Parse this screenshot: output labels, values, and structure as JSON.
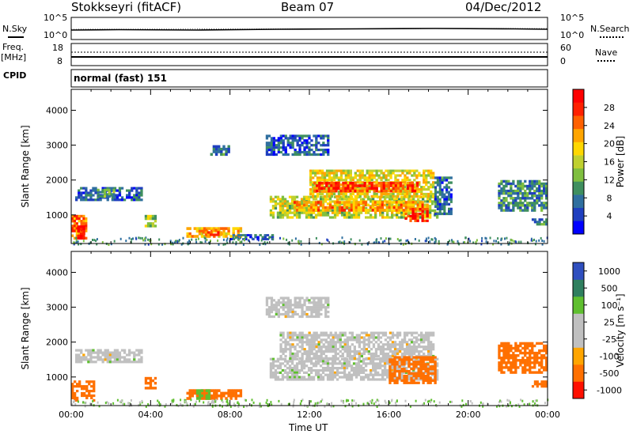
{
  "header": {
    "station": "Stokkseyri (fitACF)",
    "beam": "Beam 07",
    "date": "04/Dec/2012"
  },
  "noise_panel": {
    "left_label": "N.Sky",
    "right_label": "N.Search",
    "ticks_left": [
      "10^5",
      "10^0"
    ],
    "ticks_right": [
      "10^5",
      "10^0"
    ]
  },
  "freq_panel": {
    "left_label_1": "Freq.",
    "left_label_2": "[MHz]",
    "right_label": "Nave",
    "ticks_left": [
      "18",
      "8"
    ],
    "ticks_right": [
      "60",
      "0"
    ]
  },
  "cpid_panel": {
    "label": "CPID",
    "value": "normal (fast) 151"
  },
  "chart_data": [
    {
      "type": "heatmap",
      "variable": "power",
      "ylabel": "Slant Range [km]",
      "ylim": [
        180,
        4600
      ],
      "yticks": [
        "4000",
        "3000",
        "2000",
        "1000"
      ],
      "xlim": [
        0,
        24
      ],
      "colorbar": {
        "label": "Power [dB]",
        "ticks": [
          "28",
          "24",
          "20",
          "16",
          "12",
          "8",
          "4"
        ],
        "range": [
          0,
          32
        ]
      },
      "regions": [
        {
          "t0": 0.0,
          "t1": 0.8,
          "r0": 300,
          "r1": 1000,
          "v": 24
        },
        {
          "t0": 0.3,
          "t1": 0.7,
          "r0": 300,
          "r1": 700,
          "v": 30
        },
        {
          "t0": 0.2,
          "t1": 3.6,
          "r0": 1400,
          "r1": 1800,
          "v": 6
        },
        {
          "t0": 1.3,
          "t1": 2.2,
          "r0": 1500,
          "r1": 1750,
          "v": 12
        },
        {
          "t0": 3.7,
          "t1": 4.3,
          "r0": 650,
          "r1": 1000,
          "v": 14
        },
        {
          "t0": 5.8,
          "t1": 8.6,
          "r0": 350,
          "r1": 650,
          "v": 20
        },
        {
          "t0": 6.6,
          "t1": 7.6,
          "r0": 400,
          "r1": 600,
          "v": 26
        },
        {
          "t0": 8.0,
          "t1": 10.2,
          "r0": 280,
          "r1": 450,
          "v": 6
        },
        {
          "t0": 10.0,
          "t1": 18.5,
          "r0": 900,
          "r1": 1550,
          "v": 16
        },
        {
          "t0": 11.2,
          "t1": 18.0,
          "r0": 1100,
          "r1": 1400,
          "v": 22
        },
        {
          "t0": 12.0,
          "t1": 18.3,
          "r0": 1500,
          "r1": 2300,
          "v": 18
        },
        {
          "t0": 12.2,
          "t1": 17.5,
          "r0": 1650,
          "r1": 1950,
          "v": 27
        },
        {
          "t0": 16.8,
          "t1": 18.0,
          "r0": 800,
          "r1": 1200,
          "v": 28
        },
        {
          "t0": 9.8,
          "t1": 13.0,
          "r0": 2700,
          "r1": 3300,
          "v": 6
        },
        {
          "t0": 7.0,
          "t1": 8.0,
          "r0": 2700,
          "r1": 3000,
          "v": 8
        },
        {
          "t0": 18.3,
          "t1": 19.2,
          "r0": 1000,
          "r1": 2100,
          "v": 7
        },
        {
          "t0": 21.5,
          "t1": 24.0,
          "r0": 1100,
          "r1": 2000,
          "v": 9
        },
        {
          "t0": 23.2,
          "t1": 24.0,
          "r0": 700,
          "r1": 900,
          "v": 8
        }
      ]
    },
    {
      "type": "heatmap",
      "variable": "velocity",
      "ylabel": "Slant Range [km]",
      "ylim": [
        180,
        4600
      ],
      "yticks": [
        "4000",
        "3000",
        "2000",
        "1000"
      ],
      "xlim": [
        0,
        24
      ],
      "xlabel": "Time UT",
      "xticks": [
        "00:00",
        "04:00",
        "08:00",
        "12:00",
        "16:00",
        "20:00",
        "00:00"
      ],
      "colorbar": {
        "label": "Velocity [m s⁻¹]",
        "ticks": [
          "1000",
          "500",
          "100",
          "25",
          "-25",
          "-100",
          "-500",
          "-1000"
        ]
      },
      "regions": [
        {
          "t0": 0.0,
          "t1": 1.2,
          "r0": 300,
          "r1": 900,
          "v": -150
        },
        {
          "t0": 0.2,
          "t1": 3.6,
          "r0": 1400,
          "r1": 1800,
          "v": 0
        },
        {
          "t0": 3.7,
          "t1": 4.3,
          "r0": 650,
          "r1": 1000,
          "v": -300
        },
        {
          "t0": 5.8,
          "t1": 8.6,
          "r0": 350,
          "r1": 650,
          "v": -120
        },
        {
          "t0": 6.3,
          "t1": 7.0,
          "r0": 350,
          "r1": 650,
          "v": 60
        },
        {
          "t0": 10.0,
          "t1": 18.5,
          "r0": 900,
          "r1": 1550,
          "v": 0
        },
        {
          "t0": 10.5,
          "t1": 18.3,
          "r0": 1500,
          "r1": 2300,
          "v": 0
        },
        {
          "t0": 16.0,
          "t1": 18.4,
          "r0": 800,
          "r1": 1600,
          "v": -180
        },
        {
          "t0": 9.8,
          "t1": 13.0,
          "r0": 2700,
          "r1": 3300,
          "v": 0
        },
        {
          "t0": 21.5,
          "t1": 24.0,
          "r0": 1100,
          "r1": 2000,
          "v": -200
        },
        {
          "t0": 23.2,
          "t1": 24.0,
          "r0": 700,
          "r1": 900,
          "v": -300
        }
      ]
    }
  ]
}
